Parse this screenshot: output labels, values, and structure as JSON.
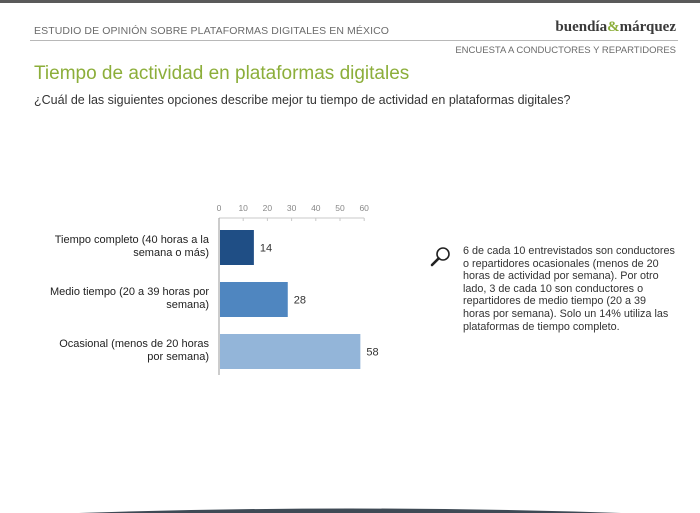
{
  "header": {
    "study_title": "ESTUDIO DE OPINIÓN SOBRE PLATAFORMAS DIGITALES EN MÉXICO",
    "logo_left": "buendía",
    "logo_amp": "&",
    "logo_right": "márquez",
    "survey_label": "ENCUESTA A CONDUCTORES Y REPARTIDORES"
  },
  "slide": {
    "title": "Tiempo de actividad en plataformas digitales",
    "question": "¿Cuál de las siguientes opciones describe mejor tu tiempo de actividad en plataformas digitales?"
  },
  "chart_data": {
    "type": "bar",
    "orientation": "horizontal",
    "categories": [
      [
        "Tiempo completo (40 horas a la",
        "semana o más)"
      ],
      [
        "Medio tiempo (20 a 39 horas por",
        "semana)"
      ],
      [
        "Ocasional (menos de 20 horas",
        "por semana)"
      ]
    ],
    "values": [
      14,
      28,
      58
    ],
    "xlim": [
      0,
      60
    ],
    "ticks": [
      0,
      10,
      20,
      30,
      40,
      50,
      60
    ],
    "bar_colors": [
      "#1f4e85",
      "#4f86c0",
      "#93b5d9"
    ],
    "grid": false,
    "data_labels": true
  },
  "note": {
    "icon": "magnifier-icon",
    "text": "6 de cada 10 entrevistados son conductores o repartidores ocasionales (menos de 20 horas de actividad por semana). Por otro lado, 3 de cada 10 son conductores o repartidores de medio tiempo (20 a 39 horas por semana). Solo un 14% utiliza las plataformas de tiempo completo."
  }
}
